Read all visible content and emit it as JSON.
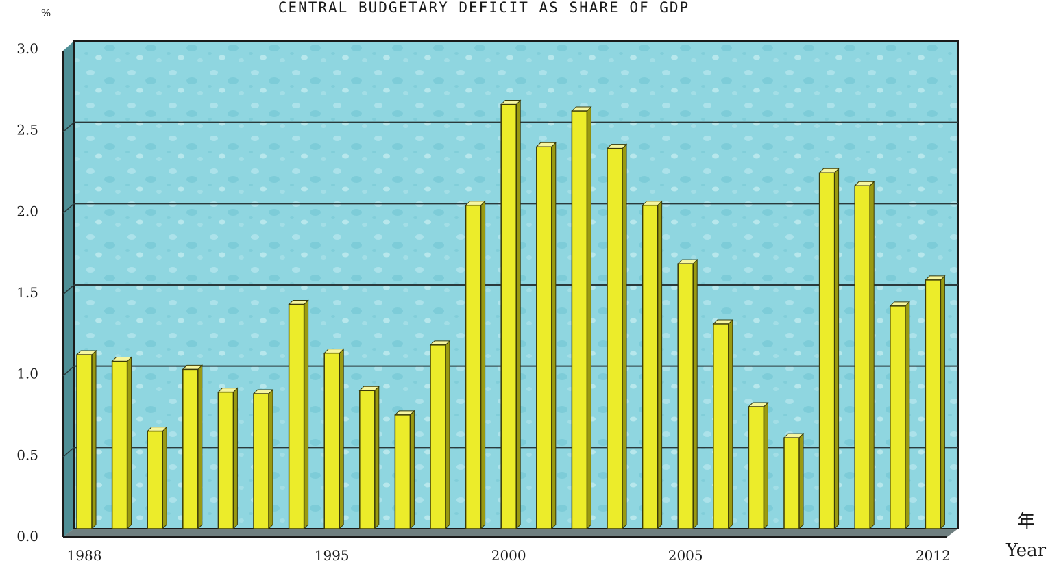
{
  "chart_data": {
    "type": "bar",
    "title": "CENTRAL BUDGETARY DEFICIT AS SHARE OF GDP",
    "y_unit_label": "%",
    "x_axis_label_cjk": "年",
    "x_axis_label": "Year",
    "ylim": [
      0,
      3.0
    ],
    "y_ticks": [
      "0.0",
      "0.5",
      "1.0",
      "1.5",
      "2.0",
      "2.5",
      "3.0"
    ],
    "x_tick_labels": [
      {
        "year": 1988,
        "label": "1988"
      },
      {
        "year": 1995,
        "label": "1995"
      },
      {
        "year": 2000,
        "label": "2000"
      },
      {
        "year": 2005,
        "label": "2005"
      },
      {
        "year": 2012,
        "label": "2012"
      }
    ],
    "grid": true,
    "legend": "none",
    "colors": {
      "bar_front": "#ecec2a",
      "bar_side": "#9a9a12",
      "bar_top": "#f6f6a0",
      "plot_bg": "#8fd6e0",
      "grid": "#2a3a3c"
    },
    "categories": [
      1988,
      1989,
      1990,
      1991,
      1992,
      1993,
      1994,
      1995,
      1996,
      1997,
      1998,
      1999,
      2000,
      2001,
      2002,
      2003,
      2004,
      2005,
      2006,
      2007,
      2008,
      2009,
      2010,
      2011,
      2012
    ],
    "values": [
      1.07,
      1.03,
      0.6,
      0.98,
      0.84,
      0.83,
      1.38,
      1.08,
      0.85,
      0.7,
      1.13,
      1.99,
      2.61,
      2.35,
      2.57,
      2.34,
      1.99,
      1.63,
      1.26,
      0.75,
      0.56,
      2.19,
      2.11,
      1.37,
      1.53
    ]
  }
}
